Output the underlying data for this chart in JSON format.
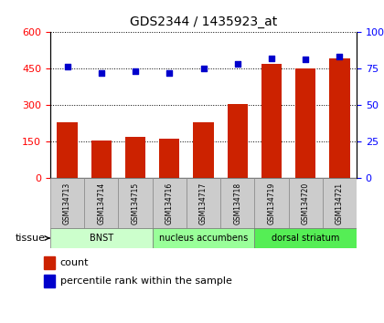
{
  "title": "GDS2344 / 1435923_at",
  "samples": [
    "GSM134713",
    "GSM134714",
    "GSM134715",
    "GSM134716",
    "GSM134717",
    "GSM134718",
    "GSM134719",
    "GSM134720",
    "GSM134721"
  ],
  "counts": [
    230,
    155,
    170,
    160,
    230,
    305,
    470,
    450,
    490
  ],
  "percentile_ranks": [
    76,
    72,
    73,
    72,
    75,
    78,
    82,
    81,
    83
  ],
  "groups": [
    {
      "label": "BNST",
      "start": 0,
      "end": 3,
      "color": "#ccffcc"
    },
    {
      "label": "nucleus accumbens",
      "start": 3,
      "end": 6,
      "color": "#99ff99"
    },
    {
      "label": "dorsal striatum",
      "start": 6,
      "end": 9,
      "color": "#55ee55"
    }
  ],
  "left_ylim": [
    0,
    600
  ],
  "left_yticks": [
    0,
    150,
    300,
    450,
    600
  ],
  "right_ylim": [
    0,
    100
  ],
  "right_yticks": [
    0,
    25,
    50,
    75,
    100
  ],
  "right_yticklabels": [
    "0",
    "25",
    "50",
    "75",
    "100%"
  ],
  "bar_color": "#cc2200",
  "dot_color": "#0000cc",
  "bar_width": 0.6,
  "tissue_label": "tissue",
  "legend_count_label": "count",
  "legend_percentile_label": "percentile rank within the sample"
}
